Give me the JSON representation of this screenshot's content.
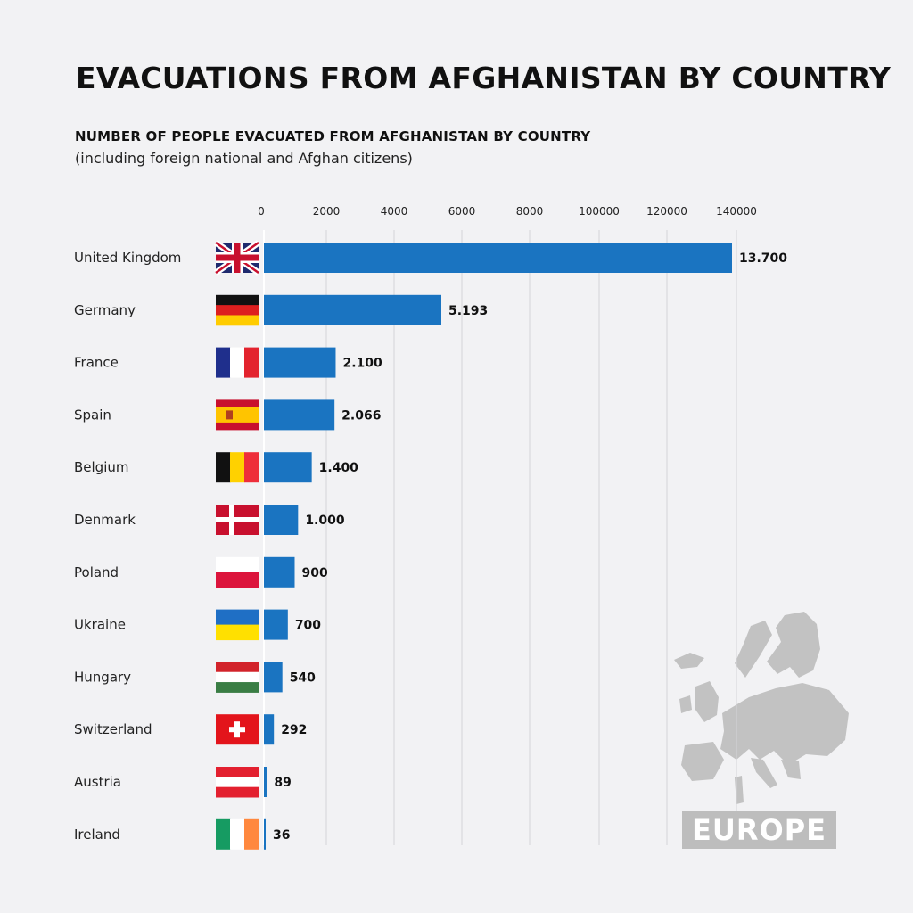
{
  "title": "EVACUATIONS FROM AFGHANISTAN BY COUNTRY",
  "subtitle": "NUMBER OF PEOPLE EVACUATED FROM AFGHANISTAN BY COUNTRY",
  "note": "(including foreign national and Afghan citizens)",
  "map_label": "EUROPE",
  "colors": {
    "bar": "#1a74c1",
    "grid": "#d4d4d8",
    "background": "#f2f2f4",
    "map": "#c2c2c2"
  },
  "chart_data": {
    "type": "bar",
    "orientation": "horizontal",
    "axis_ticks": [
      "0",
      "2000",
      "4000",
      "6000",
      "8000",
      "100000",
      "120000",
      "140000"
    ],
    "grid": true,
    "categories": [
      "United Kingdom",
      "Germany",
      "France",
      "Spain",
      "Belgium",
      "Denmark",
      "Poland",
      "Ukraine",
      "Hungary",
      "Switzerland",
      "Austria",
      "Ireland"
    ],
    "values": [
      13700,
      5193,
      2100,
      2066,
      1400,
      1000,
      900,
      700,
      540,
      292,
      89,
      36
    ],
    "value_labels": [
      "13.700",
      "5.193",
      "2.100",
      "2.066",
      "1.400",
      "1.000",
      "900",
      "700",
      "540",
      "292",
      "89",
      "36"
    ],
    "flag_icons": [
      "uk-flag-icon",
      "germany-flag-icon",
      "france-flag-icon",
      "spain-flag-icon",
      "belgium-flag-icon",
      "denmark-flag-icon",
      "poland-flag-icon",
      "ukraine-flag-icon",
      "hungary-flag-icon",
      "switzerland-flag-icon",
      "austria-flag-icon",
      "ireland-flag-icon"
    ]
  }
}
